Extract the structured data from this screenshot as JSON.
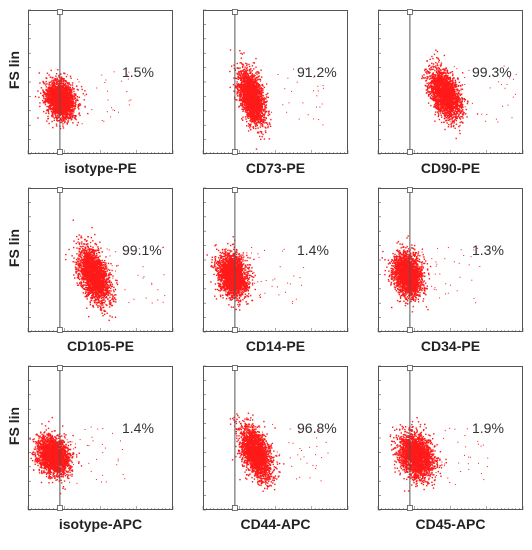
{
  "chart_data": [
    {
      "type": "scatter",
      "title": "",
      "xlabel": "isotype-PE",
      "ylabel": "FS lin",
      "gate_percent": "1.5%",
      "cluster": {
        "x_center": 0.22,
        "y_center": 0.62,
        "spread_x": 0.11,
        "spread_y": 0.14
      }
    },
    {
      "type": "scatter",
      "title": "",
      "xlabel": "CD73-PE",
      "ylabel": "",
      "gate_percent": "91.2%",
      "cluster": {
        "x_center": 0.33,
        "y_center": 0.6,
        "spread_x": 0.1,
        "spread_y": 0.18
      }
    },
    {
      "type": "scatter",
      "title": "",
      "xlabel": "CD90-PE",
      "ylabel": "",
      "gate_percent": "99.3%",
      "cluster": {
        "x_center": 0.46,
        "y_center": 0.58,
        "spread_x": 0.12,
        "spread_y": 0.17
      }
    },
    {
      "type": "scatter",
      "title": "",
      "xlabel": "CD105-PE",
      "ylabel": "FS lin",
      "gate_percent": "99.1%",
      "cluster": {
        "x_center": 0.45,
        "y_center": 0.6,
        "spread_x": 0.12,
        "spread_y": 0.19
      }
    },
    {
      "type": "scatter",
      "title": "",
      "xlabel": "CD14-PE",
      "ylabel": "",
      "gate_percent": "1.4%",
      "cluster": {
        "x_center": 0.2,
        "y_center": 0.6,
        "spread_x": 0.11,
        "spread_y": 0.16
      }
    },
    {
      "type": "scatter",
      "title": "",
      "xlabel": "CD34-PE",
      "ylabel": "",
      "gate_percent": "1.3%",
      "cluster": {
        "x_center": 0.2,
        "y_center": 0.6,
        "spread_x": 0.11,
        "spread_y": 0.16
      }
    },
    {
      "type": "scatter",
      "title": "",
      "xlabel": "isotype-APC",
      "ylabel": "FS lin",
      "gate_percent": "1.4%",
      "cluster": {
        "x_center": 0.17,
        "y_center": 0.62,
        "spread_x": 0.12,
        "spread_y": 0.14
      }
    },
    {
      "type": "scatter",
      "title": "",
      "xlabel": "CD44-APC",
      "ylabel": "",
      "gate_percent": "96.8%",
      "cluster": {
        "x_center": 0.36,
        "y_center": 0.6,
        "spread_x": 0.12,
        "spread_y": 0.18
      }
    },
    {
      "type": "scatter",
      "title": "",
      "xlabel": "CD45-APC",
      "ylabel": "",
      "gate_percent": "1.9%",
      "cluster": {
        "x_center": 0.26,
        "y_center": 0.62,
        "spread_x": 0.13,
        "spread_y": 0.17
      }
    }
  ],
  "colors": {
    "points": "#ff1a1a",
    "frame": "#555555",
    "gate": "#555555"
  }
}
